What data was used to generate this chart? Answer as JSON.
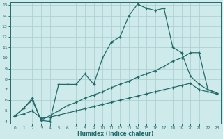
{
  "xlabel": "Humidex (Indice chaleur)",
  "xlim": [
    -0.5,
    23.5
  ],
  "ylim": [
    3.8,
    15.3
  ],
  "xticks": [
    0,
    1,
    2,
    3,
    4,
    5,
    6,
    7,
    8,
    9,
    10,
    11,
    12,
    13,
    14,
    15,
    16,
    17,
    18,
    19,
    20,
    21,
    22,
    23
  ],
  "yticks": [
    4,
    5,
    6,
    7,
    8,
    9,
    10,
    11,
    12,
    13,
    14,
    15
  ],
  "bg_color": "#ceeaea",
  "line_color": "#236b6b",
  "grid_color": "#aacccc",
  "line1_x": [
    0,
    1,
    2,
    3,
    4,
    5,
    6,
    7,
    8,
    9,
    10,
    11,
    12,
    13,
    14,
    15,
    16,
    17,
    18,
    19,
    20,
    21,
    22,
    23
  ],
  "line1_y": [
    4.5,
    5.2,
    6.2,
    4.1,
    4.0,
    7.5,
    7.5,
    7.5,
    8.5,
    7.5,
    10.0,
    11.5,
    12.0,
    14.0,
    15.1,
    14.7,
    14.5,
    14.7,
    11.0,
    10.5,
    8.3,
    7.5,
    7.0,
    6.7
  ],
  "line2_x": [
    0,
    2,
    3,
    5,
    6,
    7,
    8,
    9,
    10,
    11,
    12,
    13,
    14,
    15,
    16,
    17,
    18,
    19,
    20,
    21,
    22,
    23
  ],
  "line2_y": [
    4.5,
    6.0,
    4.1,
    5.0,
    5.5,
    5.8,
    6.2,
    6.5,
    6.8,
    7.2,
    7.5,
    7.8,
    8.2,
    8.5,
    8.8,
    9.2,
    9.7,
    10.0,
    10.5,
    10.5,
    7.0,
    6.7
  ],
  "line3_x": [
    0,
    1,
    2,
    3,
    4,
    5,
    6,
    7,
    8,
    9,
    10,
    11,
    12,
    13,
    14,
    15,
    16,
    17,
    18,
    19,
    20,
    21,
    22,
    23
  ],
  "line3_y": [
    4.5,
    4.7,
    5.0,
    4.3,
    4.4,
    4.6,
    4.8,
    5.0,
    5.2,
    5.4,
    5.6,
    5.8,
    6.0,
    6.2,
    6.4,
    6.6,
    6.8,
    7.0,
    7.2,
    7.4,
    7.6,
    7.0,
    6.8,
    6.6
  ]
}
